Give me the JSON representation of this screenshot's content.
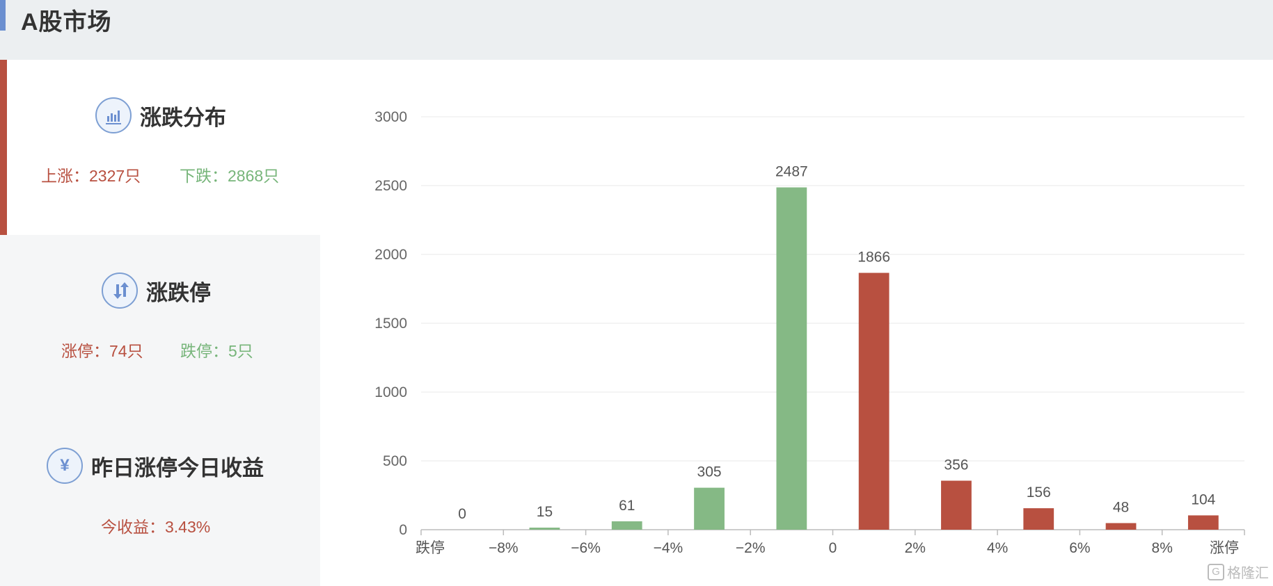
{
  "header": {
    "title": "A股市场"
  },
  "sidebar": {
    "distribution": {
      "title": "涨跌分布",
      "rise": "上涨：2327只",
      "fall": "下跌：2868只"
    },
    "limits": {
      "title": "涨跌停",
      "limit_up": "涨停：74只",
      "limit_down": "跌停：5只"
    },
    "yesterday": {
      "title": "昨日涨停今日收益",
      "income": "今收益：3.43%"
    }
  },
  "colors": {
    "up": "#b85040",
    "down": "#85b985",
    "accent": "#6b8fd0"
  },
  "chart_data": {
    "type": "bar",
    "x_ticks": [
      "跌停",
      "−8%",
      "−6%",
      "−4%",
      "−2%",
      "0",
      "2%",
      "4%",
      "6%",
      "8%",
      "涨停"
    ],
    "bins": [
      {
        "value": 0,
        "direction": "down"
      },
      {
        "value": 15,
        "direction": "down"
      },
      {
        "value": 61,
        "direction": "down"
      },
      {
        "value": 305,
        "direction": "down"
      },
      {
        "value": 2487,
        "direction": "down"
      },
      {
        "value": 1866,
        "direction": "up"
      },
      {
        "value": 356,
        "direction": "up"
      },
      {
        "value": 156,
        "direction": "up"
      },
      {
        "value": 48,
        "direction": "up"
      },
      {
        "value": 104,
        "direction": "up"
      }
    ],
    "y_ticks": [
      0,
      500,
      1000,
      1500,
      2000,
      2500,
      3000
    ],
    "ylim": [
      0,
      3000
    ],
    "grid": true
  },
  "watermark": {
    "text": "格隆汇",
    "mark": "G"
  }
}
